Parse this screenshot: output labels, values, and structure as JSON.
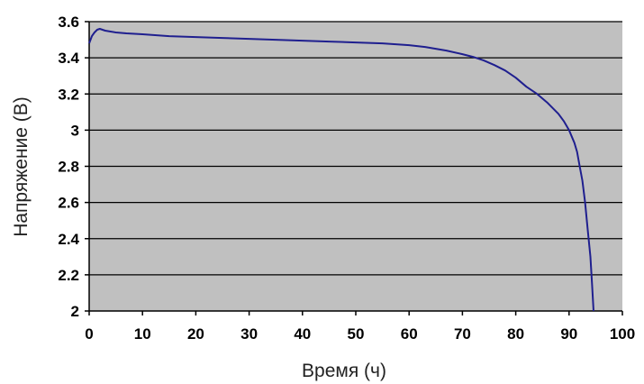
{
  "chart_data": {
    "type": "line",
    "title": "",
    "xlabel": "Время (ч)",
    "ylabel": "Напряжение (В)",
    "xlim": [
      0,
      100
    ],
    "ylim": [
      2,
      3.6
    ],
    "x_ticks": [
      0,
      10,
      20,
      30,
      40,
      50,
      60,
      70,
      80,
      90,
      100
    ],
    "x_tick_labels": [
      "0",
      "10",
      "20",
      "30",
      "40",
      "50",
      "60",
      "70",
      "80",
      "90",
      "100"
    ],
    "y_ticks": [
      2,
      2.2,
      2.4,
      2.6,
      2.8,
      3,
      3.2,
      3.4,
      3.6
    ],
    "y_tick_labels": [
      "2",
      "2.2",
      "2.4",
      "2.6",
      "2.8",
      "3",
      "3.2",
      "3.4",
      "3.6"
    ],
    "grid": "horizontal",
    "legend": "none",
    "colors": {
      "plot_background": "#c0c0c0",
      "line": "#1f1f8f",
      "grid": "#000000"
    },
    "series": [
      {
        "x": [
          0,
          0.5,
          1,
          1.5,
          2,
          2.5,
          3,
          4,
          5,
          7,
          10,
          15,
          20,
          25,
          30,
          35,
          40,
          45,
          50,
          55,
          60,
          63,
          65,
          67,
          70,
          72,
          74,
          76,
          78,
          80,
          82,
          84,
          86,
          88,
          89,
          90,
          91,
          91.5,
          92,
          92.5,
          93,
          93.5,
          94,
          94.3,
          94.6
        ],
        "y": [
          3.48,
          3.52,
          3.54,
          3.555,
          3.56,
          3.555,
          3.55,
          3.545,
          3.54,
          3.535,
          3.53,
          3.52,
          3.515,
          3.51,
          3.505,
          3.5,
          3.495,
          3.49,
          3.485,
          3.48,
          3.47,
          3.46,
          3.45,
          3.44,
          3.42,
          3.405,
          3.385,
          3.36,
          3.33,
          3.29,
          3.24,
          3.2,
          3.15,
          3.09,
          3.05,
          3.0,
          2.93,
          2.88,
          2.8,
          2.72,
          2.6,
          2.45,
          2.3,
          2.15,
          2.0
        ]
      }
    ]
  }
}
